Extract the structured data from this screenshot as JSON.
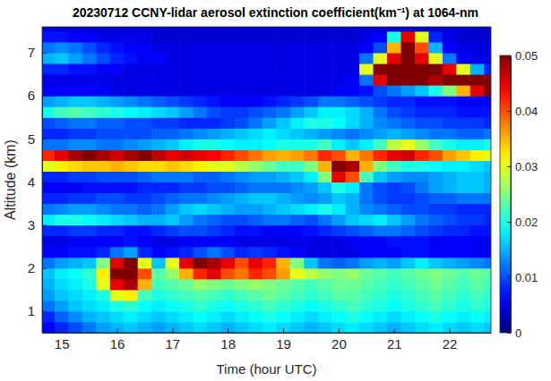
{
  "chart_data": {
    "type": "heatmap",
    "title": "20230712 CCNY-lidar aerosol extinction coefficient(km⁻¹) at 1064-nm",
    "xlabel": "Time (hour UTC)",
    "ylabel": "Altitude (km)",
    "xlim": [
      14.65,
      22.75
    ],
    "ylim": [
      0.5,
      7.6
    ],
    "xticks": [
      15,
      16,
      17,
      18,
      19,
      20,
      21,
      22
    ],
    "yticks": [
      1,
      2,
      3,
      4,
      5,
      6,
      7
    ],
    "colorbar": {
      "lim": [
        0,
        0.05
      ],
      "ticks": [
        0,
        0.01,
        0.02,
        0.03,
        0.04,
        0.05
      ]
    },
    "x": [
      14.75,
      15,
      15.25,
      15.5,
      15.75,
      16,
      16.25,
      16.5,
      16.75,
      17,
      17.25,
      17.5,
      17.75,
      18,
      18.25,
      18.5,
      18.75,
      19,
      19.25,
      19.5,
      19.75,
      20,
      20.25,
      20.5,
      20.75,
      21,
      21.25,
      21.5,
      21.75,
      22,
      22.25,
      22.5,
      22.75
    ],
    "y": [
      0.625,
      0.875,
      1.125,
      1.375,
      1.625,
      1.875,
      2.125,
      2.375,
      2.625,
      2.875,
      3.125,
      3.375,
      3.625,
      3.875,
      4.125,
      4.375,
      4.625,
      4.875,
      5.125,
      5.375,
      5.625,
      5.875,
      6.125,
      6.375,
      6.625,
      6.875,
      7.125,
      7.375,
      7.625
    ],
    "z": [
      [
        0.006,
        0.008,
        0.01,
        0.012,
        0.014,
        0.015,
        0.016,
        0.015,
        0.014,
        0.015,
        0.016,
        0.017,
        0.016,
        0.015,
        0.016,
        0.017,
        0.018,
        0.017,
        0.016,
        0.015,
        0.016,
        0.017,
        0.018,
        0.017,
        0.016,
        0.015,
        0.016,
        0.017,
        0.018,
        0.017,
        0.016,
        0.017,
        0.016
      ],
      [
        0.008,
        0.011,
        0.013,
        0.015,
        0.016,
        0.017,
        0.018,
        0.017,
        0.016,
        0.017,
        0.018,
        0.019,
        0.018,
        0.017,
        0.018,
        0.019,
        0.02,
        0.019,
        0.018,
        0.017,
        0.018,
        0.019,
        0.02,
        0.019,
        0.018,
        0.017,
        0.018,
        0.019,
        0.02,
        0.019,
        0.018,
        0.019,
        0.018
      ],
      [
        0.012,
        0.014,
        0.016,
        0.017,
        0.018,
        0.02,
        0.021,
        0.019,
        0.018,
        0.019,
        0.02,
        0.021,
        0.02,
        0.019,
        0.02,
        0.021,
        0.022,
        0.021,
        0.02,
        0.019,
        0.02,
        0.021,
        0.022,
        0.021,
        0.02,
        0.019,
        0.02,
        0.021,
        0.022,
        0.021,
        0.02,
        0.021,
        0.02
      ],
      [
        0.014,
        0.016,
        0.017,
        0.018,
        0.02,
        0.03,
        0.032,
        0.022,
        0.02,
        0.021,
        0.022,
        0.023,
        0.022,
        0.021,
        0.022,
        0.023,
        0.024,
        0.023,
        0.022,
        0.021,
        0.022,
        0.023,
        0.023,
        0.022,
        0.021,
        0.02,
        0.021,
        0.022,
        0.023,
        0.022,
        0.021,
        0.022,
        0.021
      ],
      [
        0.015,
        0.017,
        0.018,
        0.02,
        0.03,
        0.045,
        0.048,
        0.035,
        0.022,
        0.023,
        0.024,
        0.026,
        0.025,
        0.024,
        0.025,
        0.026,
        0.025,
        0.024,
        0.023,
        0.022,
        0.023,
        0.024,
        0.024,
        0.023,
        0.022,
        0.021,
        0.022,
        0.023,
        0.024,
        0.023,
        0.022,
        0.023,
        0.022
      ],
      [
        0.016,
        0.018,
        0.019,
        0.021,
        0.032,
        0.05,
        0.052,
        0.04,
        0.023,
        0.026,
        0.035,
        0.042,
        0.045,
        0.04,
        0.038,
        0.042,
        0.04,
        0.036,
        0.03,
        0.028,
        0.026,
        0.025,
        0.026,
        0.024,
        0.023,
        0.022,
        0.023,
        0.024,
        0.025,
        0.024,
        0.023,
        0.024,
        0.023
      ],
      [
        0.012,
        0.014,
        0.015,
        0.016,
        0.025,
        0.045,
        0.05,
        0.03,
        0.016,
        0.03,
        0.045,
        0.05,
        0.048,
        0.045,
        0.04,
        0.045,
        0.042,
        0.035,
        0.025,
        0.016,
        0.012,
        0.011,
        0.012,
        0.014,
        0.015,
        0.014,
        0.016,
        0.018,
        0.016,
        0.015,
        0.014,
        0.013,
        0.012
      ],
      [
        0.006,
        0.006,
        0.007,
        0.007,
        0.008,
        0.012,
        0.014,
        0.008,
        0.006,
        0.007,
        0.008,
        0.01,
        0.012,
        0.01,
        0.008,
        0.009,
        0.008,
        0.007,
        0.006,
        0.005,
        0.005,
        0.005,
        0.005,
        0.006,
        0.006,
        0.006,
        0.007,
        0.007,
        0.006,
        0.006,
        0.006,
        0.006,
        0.006
      ],
      [
        0.005,
        0.005,
        0.006,
        0.006,
        0.006,
        0.006,
        0.007,
        0.006,
        0.005,
        0.005,
        0.006,
        0.006,
        0.006,
        0.006,
        0.005,
        0.005,
        0.005,
        0.005,
        0.005,
        0.005,
        0.005,
        0.005,
        0.006,
        0.006,
        0.006,
        0.007,
        0.007,
        0.007,
        0.006,
        0.006,
        0.006,
        0.006,
        0.006
      ],
      [
        0.008,
        0.008,
        0.009,
        0.009,
        0.008,
        0.008,
        0.007,
        0.007,
        0.008,
        0.009,
        0.01,
        0.01,
        0.009,
        0.008,
        0.007,
        0.007,
        0.006,
        0.006,
        0.006,
        0.007,
        0.008,
        0.009,
        0.01,
        0.011,
        0.012,
        0.012,
        0.011,
        0.01,
        0.009,
        0.008,
        0.008,
        0.007,
        0.007
      ],
      [
        0.018,
        0.02,
        0.02,
        0.019,
        0.018,
        0.017,
        0.016,
        0.015,
        0.015,
        0.016,
        0.014,
        0.012,
        0.011,
        0.01,
        0.01,
        0.011,
        0.012,
        0.012,
        0.011,
        0.01,
        0.012,
        0.014,
        0.016,
        0.017,
        0.018,
        0.016,
        0.014,
        0.012,
        0.011,
        0.01,
        0.009,
        0.009,
        0.008
      ],
      [
        0.012,
        0.013,
        0.014,
        0.014,
        0.013,
        0.012,
        0.012,
        0.011,
        0.012,
        0.014,
        0.016,
        0.017,
        0.016,
        0.015,
        0.014,
        0.014,
        0.015,
        0.016,
        0.017,
        0.018,
        0.02,
        0.018,
        0.015,
        0.013,
        0.012,
        0.011,
        0.01,
        0.01,
        0.009,
        0.009,
        0.008,
        0.008,
        0.008
      ],
      [
        0.008,
        0.008,
        0.009,
        0.009,
        0.01,
        0.01,
        0.009,
        0.009,
        0.01,
        0.011,
        0.012,
        0.012,
        0.013,
        0.014,
        0.015,
        0.016,
        0.016,
        0.015,
        0.014,
        0.013,
        0.014,
        0.016,
        0.015,
        0.012,
        0.01,
        0.009,
        0.009,
        0.01,
        0.011,
        0.011,
        0.012,
        0.012,
        0.012
      ],
      [
        0.006,
        0.006,
        0.006,
        0.007,
        0.007,
        0.007,
        0.007,
        0.008,
        0.008,
        0.008,
        0.009,
        0.009,
        0.01,
        0.01,
        0.011,
        0.012,
        0.012,
        0.012,
        0.013,
        0.014,
        0.016,
        0.02,
        0.018,
        0.012,
        0.01,
        0.009,
        0.01,
        0.012,
        0.014,
        0.015,
        0.016,
        0.016,
        0.015
      ],
      [
        0.008,
        0.008,
        0.009,
        0.009,
        0.01,
        0.01,
        0.01,
        0.011,
        0.012,
        0.012,
        0.012,
        0.011,
        0.011,
        0.012,
        0.013,
        0.014,
        0.014,
        0.015,
        0.016,
        0.018,
        0.025,
        0.045,
        0.04,
        0.022,
        0.016,
        0.014,
        0.013,
        0.013,
        0.014,
        0.015,
        0.016,
        0.016,
        0.015
      ],
      [
        0.03,
        0.032,
        0.033,
        0.034,
        0.034,
        0.035,
        0.034,
        0.033,
        0.033,
        0.034,
        0.033,
        0.032,
        0.03,
        0.03,
        0.028,
        0.026,
        0.024,
        0.022,
        0.022,
        0.025,
        0.035,
        0.05,
        0.048,
        0.035,
        0.025,
        0.022,
        0.02,
        0.02,
        0.019,
        0.018,
        0.018,
        0.017,
        0.016
      ],
      [
        0.042,
        0.045,
        0.048,
        0.05,
        0.048,
        0.046,
        0.048,
        0.05,
        0.047,
        0.045,
        0.046,
        0.045,
        0.044,
        0.042,
        0.04,
        0.038,
        0.036,
        0.035,
        0.036,
        0.038,
        0.042,
        0.04,
        0.035,
        0.038,
        0.042,
        0.045,
        0.046,
        0.042,
        0.04,
        0.036,
        0.034,
        0.032,
        0.03
      ],
      [
        0.012,
        0.012,
        0.013,
        0.013,
        0.012,
        0.012,
        0.013,
        0.014,
        0.015,
        0.016,
        0.018,
        0.02,
        0.02,
        0.019,
        0.018,
        0.018,
        0.019,
        0.02,
        0.02,
        0.02,
        0.022,
        0.018,
        0.016,
        0.018,
        0.022,
        0.028,
        0.03,
        0.026,
        0.022,
        0.02,
        0.018,
        0.018,
        0.02
      ],
      [
        0.008,
        0.008,
        0.009,
        0.009,
        0.01,
        0.01,
        0.01,
        0.01,
        0.011,
        0.011,
        0.012,
        0.013,
        0.014,
        0.015,
        0.016,
        0.017,
        0.018,
        0.017,
        0.016,
        0.015,
        0.014,
        0.013,
        0.012,
        0.013,
        0.014,
        0.015,
        0.014,
        0.013,
        0.012,
        0.012,
        0.011,
        0.011,
        0.012
      ],
      [
        0.01,
        0.011,
        0.012,
        0.012,
        0.011,
        0.011,
        0.01,
        0.01,
        0.009,
        0.009,
        0.008,
        0.008,
        0.008,
        0.009,
        0.01,
        0.012,
        0.014,
        0.016,
        0.018,
        0.02,
        0.02,
        0.019,
        0.017,
        0.015,
        0.013,
        0.012,
        0.011,
        0.01,
        0.01,
        0.009,
        0.009,
        0.009,
        0.008
      ],
      [
        0.02,
        0.022,
        0.023,
        0.022,
        0.021,
        0.02,
        0.019,
        0.018,
        0.017,
        0.016,
        0.014,
        0.012,
        0.01,
        0.009,
        0.009,
        0.01,
        0.011,
        0.012,
        0.014,
        0.016,
        0.018,
        0.018,
        0.017,
        0.015,
        0.012,
        0.01,
        0.009,
        0.008,
        0.008,
        0.008,
        0.007,
        0.007,
        0.007
      ],
      [
        0.014,
        0.015,
        0.016,
        0.016,
        0.015,
        0.014,
        0.013,
        0.012,
        0.011,
        0.01,
        0.009,
        0.008,
        0.007,
        0.006,
        0.006,
        0.006,
        0.007,
        0.008,
        0.009,
        0.01,
        0.012,
        0.012,
        0.011,
        0.01,
        0.009,
        0.008,
        0.008,
        0.007,
        0.007,
        0.007,
        0.006,
        0.006,
        0.006
      ],
      [
        0.006,
        0.006,
        0.006,
        0.006,
        0.006,
        0.005,
        0.005,
        0.005,
        0.005,
        0.005,
        0.005,
        0.005,
        0.005,
        0.005,
        0.005,
        0.005,
        0.005,
        0.005,
        0.005,
        0.005,
        0.005,
        0.006,
        0.006,
        0.007,
        0.01,
        0.012,
        0.014,
        0.016,
        0.02,
        0.025,
        0.035,
        0.045,
        0.05
      ],
      [
        0.005,
        0.005,
        0.005,
        0.005,
        0.005,
        0.005,
        0.005,
        0.005,
        0.005,
        0.005,
        0.005,
        0.005,
        0.005,
        0.005,
        0.005,
        0.005,
        0.005,
        0.005,
        0.005,
        0.005,
        0.005,
        0.005,
        0.006,
        0.012,
        0.045,
        0.05,
        0.052,
        0.05,
        0.048,
        0.05,
        0.052,
        0.055,
        0.05
      ],
      [
        0.008,
        0.008,
        0.007,
        0.007,
        0.006,
        0.006,
        0.005,
        0.005,
        0.005,
        0.005,
        0.005,
        0.005,
        0.005,
        0.005,
        0.005,
        0.005,
        0.005,
        0.005,
        0.005,
        0.005,
        0.005,
        0.005,
        0.005,
        0.03,
        0.055,
        0.06,
        0.06,
        0.055,
        0.05,
        0.045,
        0.03,
        0.015,
        0.008
      ],
      [
        0.015,
        0.016,
        0.014,
        0.012,
        0.01,
        0.008,
        0.007,
        0.006,
        0.006,
        0.005,
        0.005,
        0.005,
        0.005,
        0.005,
        0.005,
        0.005,
        0.005,
        0.005,
        0.005,
        0.005,
        0.005,
        0.005,
        0.005,
        0.012,
        0.03,
        0.045,
        0.05,
        0.045,
        0.03,
        0.012,
        0.006,
        0.005,
        0.005
      ],
      [
        0.012,
        0.013,
        0.012,
        0.01,
        0.008,
        0.007,
        0.006,
        0.006,
        0.005,
        0.005,
        0.005,
        0.005,
        0.005,
        0.005,
        0.005,
        0.005,
        0.005,
        0.005,
        0.005,
        0.005,
        0.005,
        0.005,
        0.005,
        0.006,
        0.01,
        0.035,
        0.05,
        0.04,
        0.015,
        0.006,
        0.005,
        0.005,
        0.005
      ],
      [
        0.007,
        0.007,
        0.006,
        0.006,
        0.005,
        0.005,
        0.005,
        0.005,
        0.004,
        0.004,
        0.004,
        0.004,
        0.004,
        0.004,
        0.004,
        0.004,
        0.004,
        0.004,
        0.004,
        0.004,
        0.004,
        0.004,
        0.004,
        0.005,
        0.006,
        0.02,
        0.045,
        0.03,
        0.008,
        0.005,
        0.004,
        0.004,
        0.004
      ],
      [
        0.004,
        0.004,
        0.004,
        0.004,
        0.004,
        0.004,
        0.004,
        0.004,
        0.004,
        0.004,
        0.004,
        0.004,
        0.004,
        0.004,
        0.004,
        0.004,
        0.004,
        0.004,
        0.004,
        0.004,
        0.004,
        0.004,
        0.004,
        0.004,
        0.004,
        0.004,
        0.004,
        0.004,
        0.004,
        0.004,
        0.004,
        0.004,
        0.004
      ]
    ]
  }
}
